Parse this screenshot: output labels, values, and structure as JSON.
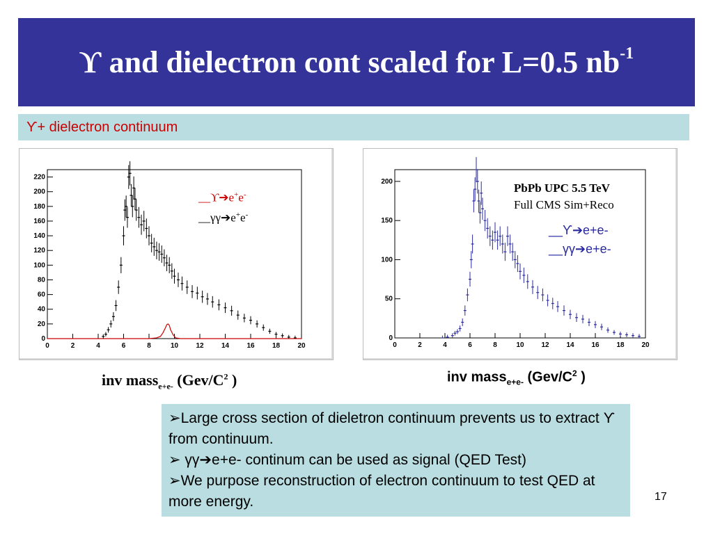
{
  "slide": {
    "title_main": "ϒ and dielectron cont scaled for L=0.5 nb",
    "title_sup": "-1",
    "subtitle": "ϒ+ dielectron continuum",
    "page_number": "17",
    "colors": {
      "title_bg": "#333399",
      "box_bg": "#b9dde0",
      "red": "#cc0000",
      "blue": "#2a2aa0"
    }
  },
  "left_legend": {
    "upsilon_prefix": "__ϒ",
    "upsilon_arrow": "➔",
    "upsilon_e": "e",
    "upsilon_plus": "+",
    "upsilon_e2": "e",
    "upsilon_minus": "-",
    "gg_prefix": "__γγ",
    "gg_arrow": "➔",
    "gg_e": "e",
    "gg_plus": "+",
    "gg_e2": "e",
    "gg_minus": "-"
  },
  "right_legend": {
    "upsilon": "__ϒ",
    "upsilon_arrow": "➔",
    "upsilon_tail": "e+e-",
    "gg": "__γγ",
    "gg_arrow": "➔",
    "gg_tail": "e+e-"
  },
  "sim_label": {
    "line1": "PbPb UPC 5.5 TeV",
    "line2": "Full CMS Sim+Reco"
  },
  "xlabels": {
    "left_main": "inv mass",
    "left_sub": "e+e-",
    "left_unit": " (Gev/C",
    "left_sup": "2",
    "left_close": " )",
    "right_main": "inv mass",
    "right_sub": "e+e-",
    "right_unit": " (Gev/C",
    "right_sup": "2",
    "right_close": " )"
  },
  "notes": [
    "➢Large cross section of dieletron continuum prevents us to extract ϒ from continuum.",
    "➢ γγ➔e+e- continum can be used as signal (QED Test)",
    "➢We purpose reconstruction of electron continuum to test QED at  more energy."
  ],
  "chart_data": [
    {
      "type": "scatter",
      "xlim": [
        0,
        20
      ],
      "ylim": [
        0,
        230
      ],
      "x_ticks": [
        0,
        2,
        4,
        6,
        8,
        10,
        12,
        14,
        16,
        18,
        20
      ],
      "y_ticks": [
        0,
        20,
        40,
        60,
        80,
        100,
        120,
        140,
        160,
        180,
        200,
        220
      ],
      "series": [
        {
          "name": "ϒ➔e+e-",
          "color": "#cc0000",
          "x": [
            0,
            1,
            2,
            3,
            4,
            5,
            6,
            7,
            8,
            8.6,
            8.9,
            9.1,
            9.3,
            9.4,
            9.5,
            9.6,
            9.7,
            9.9,
            10.1,
            10.5,
            11,
            12,
            14,
            16,
            18,
            20
          ],
          "y": [
            0,
            0,
            0,
            0,
            0,
            0,
            0,
            0,
            0,
            1,
            3,
            8,
            15,
            19,
            20,
            18,
            12,
            5,
            1,
            0,
            0,
            0,
            0,
            0,
            0,
            0
          ]
        },
        {
          "name": "γγ➔e+e-",
          "color": "#000000",
          "x": [
            4.4,
            4.6,
            4.8,
            5.0,
            5.2,
            5.4,
            5.6,
            5.8,
            6.0,
            6.1,
            6.2,
            6.3,
            6.4,
            6.5,
            6.6,
            6.7,
            6.8,
            6.9,
            7.0,
            7.2,
            7.4,
            7.6,
            7.8,
            8.0,
            8.2,
            8.4,
            8.6,
            8.8,
            9.0,
            9.2,
            9.4,
            9.6,
            9.8,
            10.0,
            10.3,
            10.6,
            11.0,
            11.4,
            11.8,
            12.2,
            12.6,
            13.0,
            13.5,
            14.0,
            14.5,
            15.0,
            15.5,
            16.0,
            16.5,
            17.0,
            17.5,
            18.0,
            18.5,
            19.0,
            19.5
          ],
          "y": [
            3,
            6,
            12,
            20,
            30,
            45,
            70,
            100,
            140,
            175,
            180,
            165,
            220,
            225,
            195,
            180,
            205,
            190,
            175,
            165,
            155,
            160,
            150,
            140,
            130,
            125,
            120,
            118,
            115,
            110,
            103,
            100,
            92,
            85,
            80,
            75,
            70,
            64,
            62,
            57,
            54,
            50,
            46,
            42,
            38,
            32,
            28,
            25,
            20,
            15,
            10,
            6,
            4,
            2,
            1
          ]
        }
      ]
    },
    {
      "type": "scatter",
      "xlim": [
        0,
        20
      ],
      "ylim": [
        0,
        215
      ],
      "x_ticks": [
        0,
        2,
        4,
        6,
        8,
        10,
        12,
        14,
        16,
        18,
        20
      ],
      "y_ticks": [
        0,
        50,
        100,
        150,
        200
      ],
      "series": [
        {
          "name": "γγ➔e+e-",
          "color": "#2a2aa0",
          "x": [
            3.8,
            4.2,
            4.6,
            4.8,
            5.0,
            5.2,
            5.4,
            5.6,
            5.8,
            6.0,
            6.1,
            6.2,
            6.3,
            6.4,
            6.5,
            6.6,
            6.7,
            6.8,
            6.9,
            7.0,
            7.2,
            7.4,
            7.6,
            7.8,
            8.0,
            8.2,
            8.4,
            8.6,
            8.8,
            9.0,
            9.2,
            9.4,
            9.6,
            9.8,
            10.0,
            10.3,
            10.6,
            11.0,
            11.4,
            11.8,
            12.2,
            12.6,
            13.0,
            13.5,
            14.0,
            14.5,
            15.0,
            15.5,
            16.0,
            16.5,
            17.0,
            17.5,
            18.0,
            18.5,
            19.0,
            19.5
          ],
          "y": [
            0,
            1,
            3,
            6,
            8,
            12,
            20,
            35,
            55,
            75,
            100,
            120,
            175,
            190,
            215,
            200,
            175,
            160,
            185,
            165,
            150,
            140,
            130,
            125,
            135,
            125,
            130,
            120,
            110,
            130,
            120,
            110,
            100,
            95,
            85,
            80,
            72,
            65,
            58,
            55,
            48,
            44,
            40,
            35,
            30,
            26,
            24,
            20,
            17,
            14,
            10,
            7,
            5,
            4,
            3,
            2
          ]
        }
      ]
    }
  ]
}
